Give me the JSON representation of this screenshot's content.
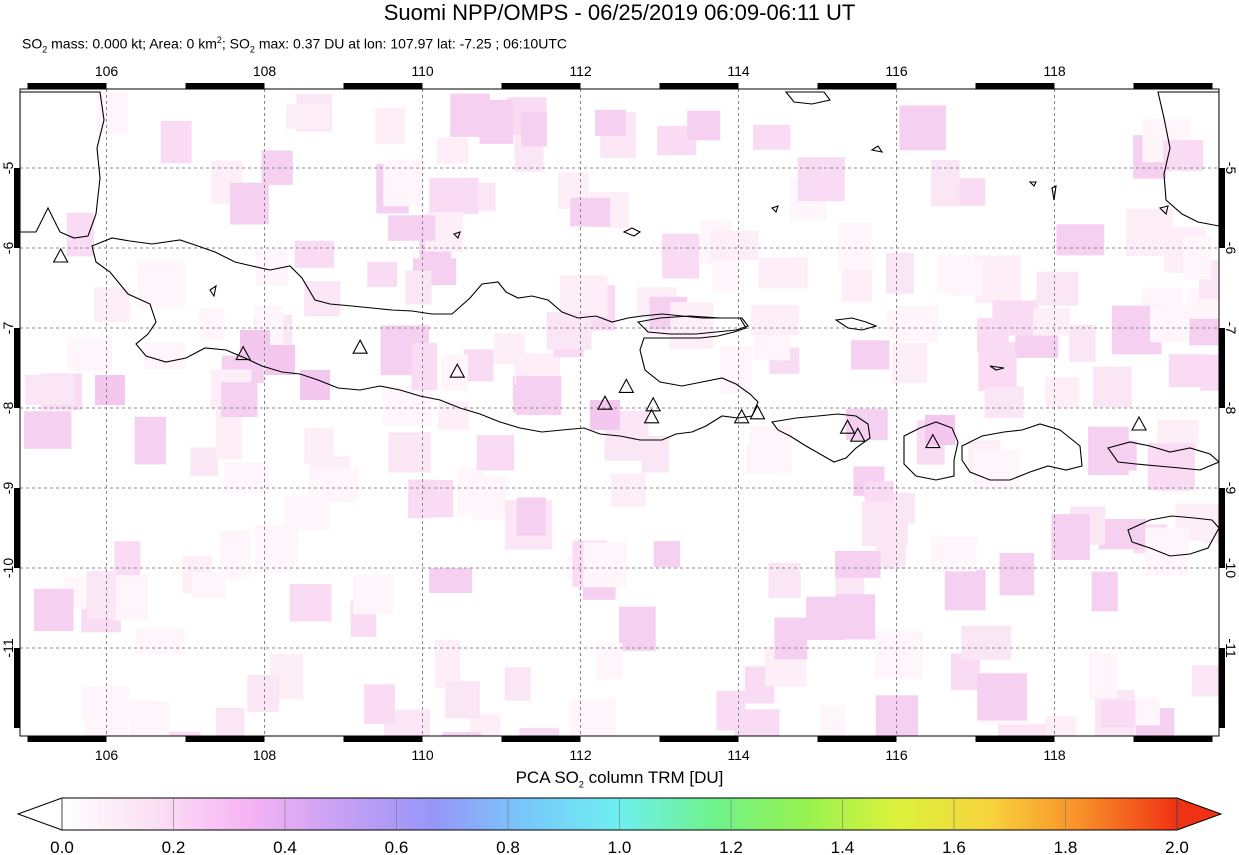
{
  "header": {
    "title": "Suomi NPP/OMPS - 06/25/2019 06:09-06:11 UT",
    "so2_prefix": "SO",
    "so2_sub": "2",
    "mass_text": " mass: 0.000 kt; Area: 0 km",
    "area_sup": "2",
    "max_text": "; SO",
    "max_sub": "2",
    "max_rest": " max: 0.37 DU at lon: 107.97 lat: -7.25 ; 06:10UTC"
  },
  "map": {
    "lon_ticks": [
      "106",
      "108",
      "110",
      "112",
      "114",
      "116",
      "118"
    ],
    "lat_ticks": [
      "-5",
      "-6",
      "-7",
      "-8",
      "-9",
      "-10",
      "-11"
    ],
    "lon_range": [
      105,
      120
    ],
    "lat_range": [
      -12.1,
      -4.0
    ],
    "grid": true,
    "volcano_markers": [
      {
        "lon": 105.42,
        "lat": -6.1
      },
      {
        "lon": 107.73,
        "lat": -7.32
      },
      {
        "lon": 109.21,
        "lat": -7.24
      },
      {
        "lon": 110.44,
        "lat": -7.54
      },
      {
        "lon": 112.31,
        "lat": -7.94
      },
      {
        "lon": 112.58,
        "lat": -7.73
      },
      {
        "lon": 112.92,
        "lat": -7.96
      },
      {
        "lon": 112.9,
        "lat": -8.11
      },
      {
        "lon": 114.04,
        "lat": -8.11
      },
      {
        "lon": 114.24,
        "lat": -8.06
      },
      {
        "lon": 115.38,
        "lat": -8.24
      },
      {
        "lon": 115.51,
        "lat": -8.34
      },
      {
        "lon": 116.46,
        "lat": -8.42
      },
      {
        "lon": 119.07,
        "lat": -8.2
      }
    ]
  },
  "colorbar": {
    "title_prefix": "PCA SO",
    "title_sub": "2",
    "title_suffix": " column TRM [DU]",
    "tick_labels": [
      "0.0",
      "0.2",
      "0.4",
      "0.6",
      "0.8",
      "1.0",
      "1.2",
      "1.4",
      "1.6",
      "1.8",
      "2.0"
    ],
    "range": [
      0.0,
      2.0
    ],
    "colors": [
      "#ffffff",
      "#fbe0f4",
      "#f6b4f4",
      "#c8a0f4",
      "#9696f8",
      "#78c8fa",
      "#6ef0f0",
      "#6ef28c",
      "#96f250",
      "#dcf23c",
      "#f8d23c",
      "#f88c28",
      "#f03214"
    ]
  }
}
